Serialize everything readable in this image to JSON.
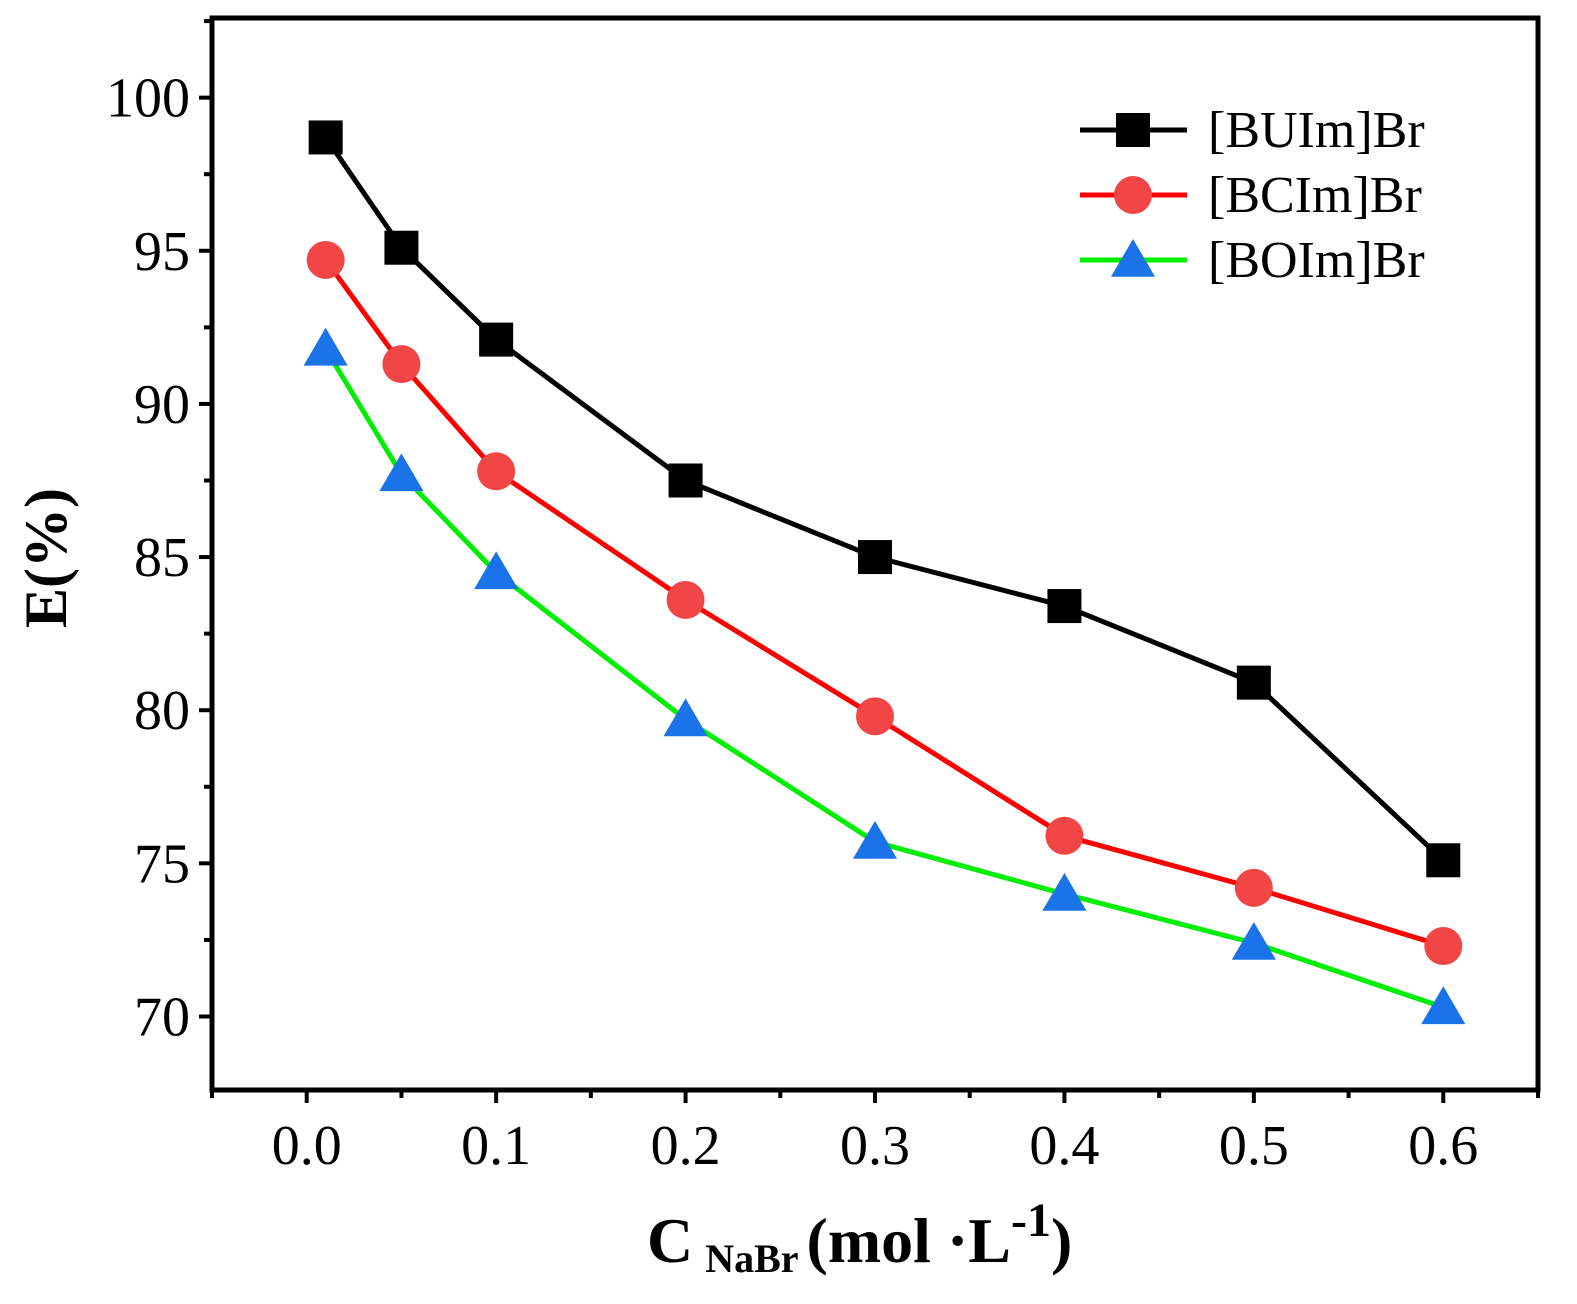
{
  "chart_data": {
    "type": "line",
    "title": "",
    "xlabel": {
      "main": "C",
      "subscript": "NaBr",
      "unit_open": "(mol ·L",
      "superscript": "-1",
      "unit_close": ")"
    },
    "ylabel": "E(%)",
    "xlim": [
      -0.05,
      0.65
    ],
    "ylim": [
      67.6,
      102.6
    ],
    "x_ticks": [
      0.0,
      0.1,
      0.2,
      0.3,
      0.4,
      0.5,
      0.6
    ],
    "x_tick_labels": [
      "0.0",
      "0.1",
      "0.2",
      "0.3",
      "0.4",
      "0.5",
      "0.6"
    ],
    "y_ticks": [
      70,
      75,
      80,
      85,
      90,
      95,
      100
    ],
    "y_tick_labels": [
      "70",
      "75",
      "80",
      "85",
      "90",
      "95",
      "100"
    ],
    "x_minor_ticks": [
      -0.05,
      0.05,
      0.15,
      0.25,
      0.35,
      0.45,
      0.55,
      0.65
    ],
    "y_minor_ticks": [
      72.5,
      77.5,
      82.5,
      87.5,
      92.5,
      97.5,
      102.5
    ],
    "grid": false,
    "legend_position": "top-right",
    "series": [
      {
        "name": "[BUIm]Br",
        "marker": "square",
        "line_color": "#000000",
        "marker_color": "#000000",
        "x": [
          0.01,
          0.05,
          0.1,
          0.2,
          0.3,
          0.4,
          0.5,
          0.6
        ],
        "values": [
          98.7,
          95.1,
          92.1,
          87.5,
          85.0,
          83.4,
          80.9,
          75.1
        ]
      },
      {
        "name": "[BCIm]Br",
        "marker": "circle",
        "line_color": "#ff0000",
        "marker_color": "#f24646",
        "x": [
          0.01,
          0.05,
          0.1,
          0.2,
          0.3,
          0.4,
          0.5,
          0.6
        ],
        "values": [
          94.7,
          91.3,
          87.8,
          83.6,
          79.8,
          75.9,
          74.2,
          72.3
        ]
      },
      {
        "name": "[BOIm]Br",
        "marker": "triangle",
        "line_color": "#00ee00",
        "marker_color": "#1a73e8",
        "x": [
          0.01,
          0.05,
          0.1,
          0.2,
          0.3,
          0.4,
          0.5,
          0.6
        ],
        "values": [
          91.8,
          87.7,
          84.5,
          79.7,
          75.7,
          74.0,
          72.4,
          70.3
        ]
      }
    ]
  }
}
